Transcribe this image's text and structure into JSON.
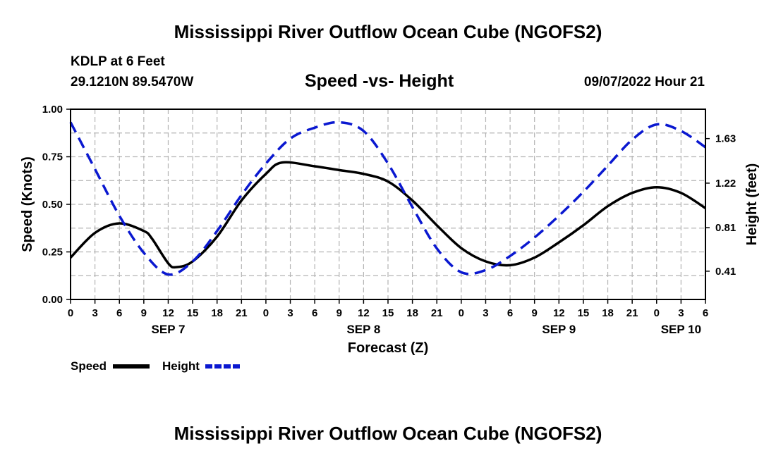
{
  "page_title_top": "Mississippi River Outflow Ocean Cube (NGOFS2)",
  "page_title_bottom": "Mississippi River Outflow Ocean Cube (NGOFS2)",
  "station": {
    "name": "KDLP at 6 Feet",
    "coordinates": "29.1210N  89.5470W",
    "datetime": "09/07/2022 Hour 21"
  },
  "colors": {
    "speed": "#000000",
    "height": "#0a18d0",
    "grid": "#b4b4b4"
  },
  "chart_data": {
    "type": "line",
    "title": "Speed -vs- Height",
    "xlabel": "Forecast (Z)",
    "ylabel": "Speed (Knots)",
    "ylabel_right": "Height (feet)",
    "xlim": [
      0,
      78
    ],
    "ylim": [
      0,
      1
    ],
    "ylim_right": [
      0.15,
      1.9
    ],
    "x_tick_values": [
      0,
      3,
      6,
      9,
      12,
      15,
      18,
      21,
      24,
      27,
      30,
      33,
      36,
      39,
      42,
      45,
      48,
      51,
      54,
      57,
      60,
      63,
      66,
      69,
      72,
      75,
      78
    ],
    "x_tick_labels": [
      "0",
      "3",
      "6",
      "9",
      "12",
      "15",
      "18",
      "21",
      "0",
      "3",
      "6",
      "9",
      "12",
      "15",
      "18",
      "21",
      "0",
      "3",
      "6",
      "9",
      "12",
      "15",
      "18",
      "21",
      "0",
      "3",
      "6"
    ],
    "day_labels": [
      {
        "x": 12,
        "label": "SEP 7"
      },
      {
        "x": 36,
        "label": "SEP 8"
      },
      {
        "x": 60,
        "label": "SEP 9"
      },
      {
        "x": 75,
        "label": "SEP 10"
      }
    ],
    "y_ticks": [
      "0.00",
      "0.25",
      "0.50",
      "0.75",
      "1.00"
    ],
    "y_tick_values": [
      0,
      0.25,
      0.5,
      0.75,
      1.0
    ],
    "y_right_ticks": [
      "0.41",
      "0.81",
      "1.22",
      "1.63"
    ],
    "y_right_tick_values": [
      0.41,
      0.81,
      1.22,
      1.63
    ],
    "grid": true,
    "series": [
      {
        "name": "Speed",
        "axis": "left",
        "style": "solid",
        "x": [
          0,
          3,
          6,
          9,
          10,
          12,
          13,
          15,
          18,
          21,
          24,
          26,
          30,
          33,
          36,
          39,
          42,
          45,
          48,
          51,
          54,
          57,
          60,
          63,
          66,
          69,
          72,
          75,
          78
        ],
        "values": [
          0.22,
          0.35,
          0.4,
          0.36,
          0.32,
          0.19,
          0.17,
          0.2,
          0.33,
          0.52,
          0.66,
          0.72,
          0.7,
          0.68,
          0.66,
          0.62,
          0.52,
          0.39,
          0.27,
          0.2,
          0.18,
          0.22,
          0.3,
          0.39,
          0.49,
          0.56,
          0.59,
          0.56,
          0.48
        ]
      },
      {
        "name": "Height",
        "axis": "right",
        "style": "dashed",
        "x": [
          0,
          3,
          6,
          9,
          12,
          15,
          18,
          21,
          24,
          27,
          30,
          33,
          36,
          39,
          42,
          45,
          48,
          51,
          54,
          57,
          60,
          63,
          66,
          69,
          72,
          75,
          78
        ],
        "values": [
          1.78,
          1.35,
          0.92,
          0.58,
          0.38,
          0.5,
          0.78,
          1.11,
          1.4,
          1.63,
          1.73,
          1.78,
          1.7,
          1.4,
          1.0,
          0.62,
          0.4,
          0.42,
          0.55,
          0.72,
          0.92,
          1.14,
          1.38,
          1.62,
          1.76,
          1.7,
          1.55
        ]
      }
    ],
    "legend": [
      "Speed",
      "Height"
    ],
    "legend_position": "bottom-left"
  }
}
